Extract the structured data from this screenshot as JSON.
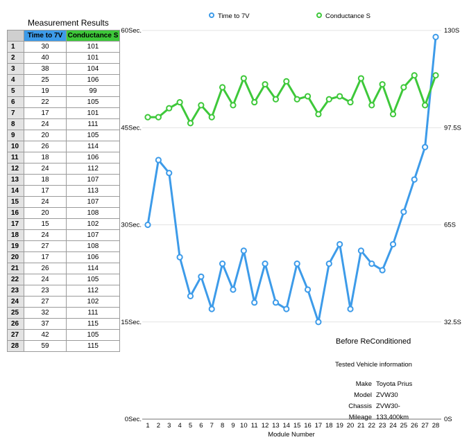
{
  "table": {
    "title": "Measurement Results",
    "headers": {
      "time": "Time to 7V",
      "conductance": "Conductance S"
    },
    "rows": [
      {
        "n": "1",
        "t": 30,
        "c": 101
      },
      {
        "n": "2",
        "t": 40,
        "c": 101
      },
      {
        "n": "3",
        "t": 38,
        "c": 104
      },
      {
        "n": "4",
        "t": 25,
        "c": 106
      },
      {
        "n": "5",
        "t": 19,
        "c": 99
      },
      {
        "n": "6",
        "t": 22,
        "c": 105
      },
      {
        "n": "7",
        "t": 17,
        "c": 101
      },
      {
        "n": "8",
        "t": 24,
        "c": 111
      },
      {
        "n": "9",
        "t": 20,
        "c": 105
      },
      {
        "n": "10",
        "t": 26,
        "c": 114
      },
      {
        "n": "11",
        "t": 18,
        "c": 106
      },
      {
        "n": "12",
        "t": 24,
        "c": 112
      },
      {
        "n": "13",
        "t": 18,
        "c": 107
      },
      {
        "n": "14",
        "t": 17,
        "c": 113
      },
      {
        "n": "15",
        "t": 24,
        "c": 107
      },
      {
        "n": "16",
        "t": 20,
        "c": 108
      },
      {
        "n": "17",
        "t": 15,
        "c": 102
      },
      {
        "n": "18",
        "t": 24,
        "c": 107
      },
      {
        "n": "19",
        "t": 27,
        "c": 108
      },
      {
        "n": "20",
        "t": 17,
        "c": 106
      },
      {
        "n": "21",
        "t": 26,
        "c": 114
      },
      {
        "n": "22",
        "t": 24,
        "c": 105
      },
      {
        "n": "23",
        "t": 23,
        "c": 112
      },
      {
        "n": "24",
        "t": 27,
        "c": 102
      },
      {
        "n": "25",
        "t": 32,
        "c": 111
      },
      {
        "n": "26",
        "t": 37,
        "c": 115
      },
      {
        "n": "27",
        "t": 42,
        "c": 105
      },
      {
        "n": "28",
        "t": 59,
        "c": 115
      }
    ]
  },
  "chart_data": {
    "type": "line",
    "x": [
      "1",
      "2",
      "3",
      "4",
      "5",
      "6",
      "7",
      "8",
      "9",
      "10",
      "11",
      "12",
      "13",
      "14",
      "15",
      "16",
      "17",
      "18",
      "19",
      "20",
      "21",
      "22",
      "23",
      "24",
      "25",
      "26",
      "27",
      "28"
    ],
    "xlabel": "Module Number",
    "series": [
      {
        "name": "Time to 7V",
        "axis": "left",
        "color": "#3d9be9",
        "values": [
          30,
          40,
          38,
          25,
          19,
          22,
          17,
          24,
          20,
          26,
          18,
          24,
          18,
          17,
          24,
          20,
          15,
          24,
          27,
          17,
          26,
          24,
          23,
          27,
          32,
          37,
          42,
          59
        ]
      },
      {
        "name": "Conductance S",
        "axis": "right",
        "color": "#3ec83a",
        "values": [
          101,
          101,
          104,
          106,
          99,
          105,
          101,
          111,
          105,
          114,
          106,
          112,
          107,
          113,
          107,
          108,
          102,
          107,
          108,
          106,
          114,
          105,
          112,
          102,
          111,
          115,
          105,
          115
        ]
      }
    ],
    "left_axis": {
      "ylim": [
        0,
        60
      ],
      "ticks": [
        "0Sec.",
        "15Sec.",
        "30Sec.",
        "45Sec.",
        "60Sec."
      ]
    },
    "right_axis": {
      "ylim": [
        0,
        130
      ],
      "ticks": [
        "0S",
        "32.5S",
        "65S",
        "97.5S",
        "130S"
      ]
    },
    "grid": true,
    "legend": "top"
  },
  "subtitle": "Before ReConditioned",
  "vehicle": {
    "title": "Tested Vehicle information",
    "rows": [
      {
        "k": "Make",
        "v": "Toyota Prius"
      },
      {
        "k": "Model",
        "v": "ZVW30"
      },
      {
        "k": "Chassis",
        "v": "ZVW30-"
      },
      {
        "k": "Mileage",
        "v": "133,400km"
      }
    ]
  }
}
